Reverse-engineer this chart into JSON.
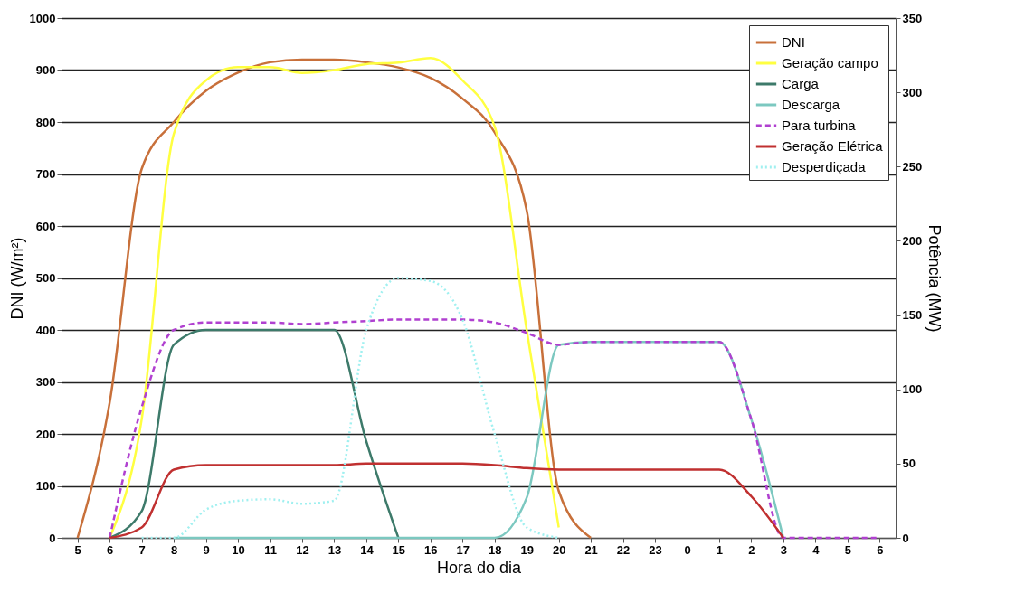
{
  "chart_data": {
    "type": "line",
    "xlabel": "Hora do dia",
    "ylabel": "DNI (W/m²)",
    "y2label": "Potência (MW)",
    "categories": [
      "5",
      "6",
      "7",
      "8",
      "9",
      "10",
      "11",
      "12",
      "13",
      "14",
      "15",
      "16",
      "17",
      "18",
      "19",
      "20",
      "21",
      "22",
      "23",
      "0",
      "1",
      "2",
      "3",
      "4",
      "5",
      "6"
    ],
    "ylim": [
      0,
      1000
    ],
    "yticks": [
      0,
      100,
      200,
      300,
      400,
      500,
      600,
      700,
      800,
      900,
      1000
    ],
    "y2lim": [
      0,
      350
    ],
    "y2ticks": [
      0,
      50,
      100,
      150,
      200,
      250,
      300,
      350
    ],
    "grid": "y",
    "legend": "top right",
    "series": [
      {
        "name": "DNI",
        "color": "#c8703a",
        "line_style": "solid",
        "values": [
          0,
          260,
          710,
          800,
          860,
          895,
          915,
          920,
          920,
          915,
          905,
          885,
          845,
          780,
          630,
          90,
          0,
          null,
          null,
          null,
          null,
          null,
          null,
          null,
          null,
          null
        ]
      },
      {
        "name": " Geração campo",
        "color": "#ffff40",
        "line_style": "solid",
        "axis": "y2",
        "values": [
          null,
          0,
          80,
          272,
          308,
          317,
          317,
          313,
          315,
          319,
          320,
          323,
          308,
          277,
          140,
          7,
          null,
          null,
          null,
          null,
          null,
          null,
          null,
          null,
          null,
          null
        ]
      },
      {
        "name": " Carga",
        "color": "#3d7a6a",
        "line_style": "solid",
        "axis": "y2",
        "values": [
          null,
          0,
          18,
          130,
          140,
          140,
          140,
          140,
          140,
          65,
          0,
          null,
          null,
          null,
          null,
          null,
          null,
          null,
          null,
          null,
          null,
          null,
          null,
          null,
          null,
          null
        ]
      },
      {
        "name": "Descarga",
        "color": "#7cc8c0",
        "line_style": "solid",
        "axis": "y2",
        "values": [
          null,
          null,
          null,
          0,
          0,
          0,
          0,
          0,
          0,
          0,
          0,
          0,
          0,
          0,
          27,
          130,
          132,
          132,
          132,
          132,
          132,
          80,
          0,
          null,
          null,
          null
        ]
      },
      {
        "name": "Para turbina",
        "color": "#b040d0",
        "line_style": "dashed",
        "axis": "y2",
        "values": [
          null,
          0,
          88,
          140,
          145,
          145,
          145,
          144,
          145,
          146,
          147,
          147,
          147,
          145,
          138,
          130,
          132,
          132,
          132,
          132,
          132,
          80,
          0,
          0,
          0,
          0
        ]
      },
      {
        "name": "Geração Elétrica",
        "color": "#c03030",
        "line_style": "solid",
        "axis": "y2",
        "values": [
          null,
          0,
          7,
          46,
          49,
          49,
          49,
          49,
          49,
          50,
          50,
          50,
          50,
          49,
          47,
          46,
          46,
          46,
          46,
          46,
          46,
          28,
          0,
          null,
          null,
          null
        ]
      },
      {
        "name": " Desperdiçada",
        "color": "#a0f0f0",
        "line_style": "dotted",
        "axis": "y2",
        "values": [
          null,
          null,
          0,
          0,
          19,
          25,
          26,
          23,
          25,
          140,
          175,
          173,
          147,
          70,
          7,
          0,
          null,
          null,
          null,
          null,
          null,
          null,
          null,
          null,
          null,
          null
        ]
      }
    ]
  }
}
